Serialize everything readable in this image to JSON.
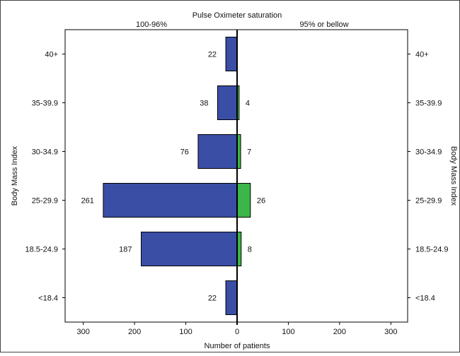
{
  "chart_data": {
    "type": "bar",
    "orientation": "horizontal-diverging",
    "title": "Pulse Oximeter saturation",
    "left_group_label": "100-96%",
    "right_group_label": "95% or bellow",
    "xlabel": "Number of patients",
    "ylabel_left": "Body Mass Index",
    "ylabel_right": "Body Mass Index",
    "categories": [
      "40+",
      "35-39.9",
      "30-34.9",
      "25-29.9",
      "18.5-24.9",
      "<18.4"
    ],
    "series": [
      {
        "name": "100-96%",
        "side": "left",
        "color": "#3a4ea6",
        "values": [
          22,
          38,
          76,
          261,
          187,
          22
        ]
      },
      {
        "name": "95% or bellow",
        "side": "right",
        "color": "#3cb54a",
        "values": [
          null,
          4,
          7,
          26,
          8,
          null
        ]
      }
    ],
    "xlim": [
      -330,
      330
    ],
    "x_ticks": [
      -300,
      -200,
      -100,
      0,
      100,
      200,
      300
    ],
    "x_tick_labels": [
      "300",
      "200",
      "100",
      "0",
      "100",
      "200",
      "300"
    ],
    "grid": false
  }
}
